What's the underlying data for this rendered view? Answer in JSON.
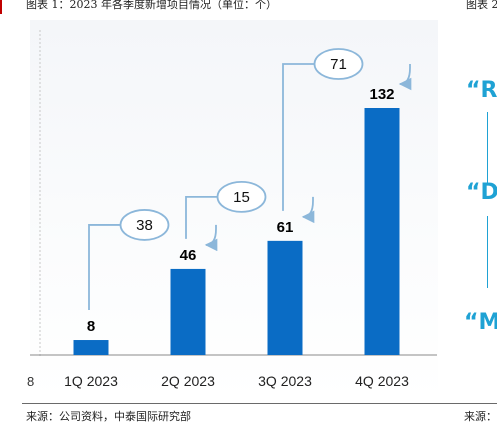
{
  "figure": {
    "title": "图表 1：2023 年各季度新增项目情况（单位：个）",
    "title_right": "图表 2",
    "source": "来源：公司资料，中泰国际研究部",
    "source_right": "来源："
  },
  "right_panel": {
    "items": [
      "“R”",
      "“D”",
      "“M"
    ]
  },
  "chart_data": {
    "type": "bar",
    "title": "图表 1：2023 年各季度新增项目情况（单位：个）",
    "categories": [
      "1Q 2023",
      "2Q 2023",
      "3Q 2023",
      "4Q 2023"
    ],
    "values": [
      8,
      46,
      61,
      132
    ],
    "unit": "个",
    "increments": [
      38,
      15,
      71
    ],
    "ylim": [
      0,
      140
    ],
    "grid": false,
    "legend": "none",
    "colors": {
      "bar": "#0a6cc5",
      "arrow": "#8cb7da",
      "label": "#000000",
      "accent": "#1fa2d4",
      "title_mark": "#c00000"
    }
  }
}
